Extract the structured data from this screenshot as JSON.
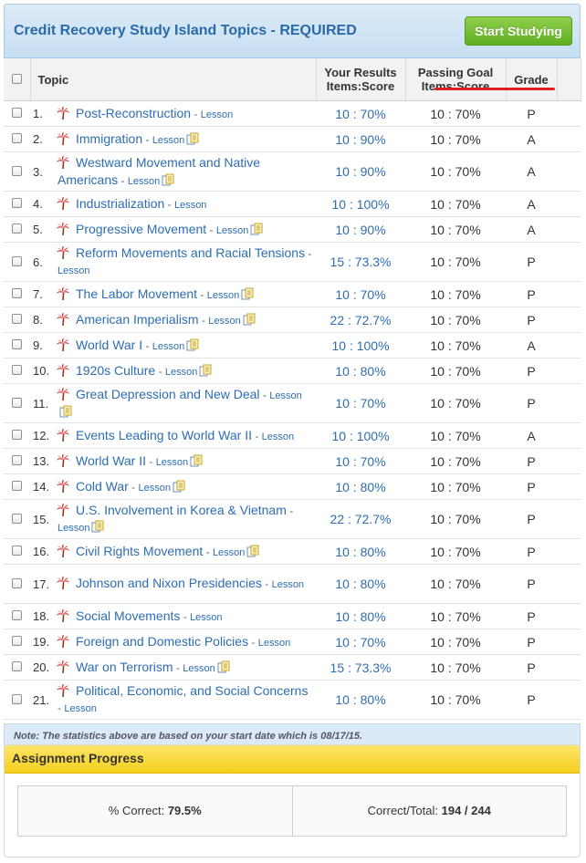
{
  "header": {
    "title": "Credit Recovery Study Island Topics - REQUIRED",
    "start_button": "Start Studying"
  },
  "columns": {
    "topic": "Topic",
    "results_line1": "Your Results",
    "results_line2": "Items:Score",
    "goal_line1": "Passing Goal",
    "goal_line2": "Items:Score",
    "grade": "Grade"
  },
  "rows": [
    {
      "num": "1.",
      "topic": "Post-Reconstruction",
      "lesson": "Lesson",
      "doc": false,
      "res": "10 :  70%",
      "goal": "10 :  70%",
      "grade": "P"
    },
    {
      "num": "2.",
      "topic": "Immigration",
      "lesson": "Lesson",
      "doc": true,
      "res": "10 :  90%",
      "goal": "10 :  70%",
      "grade": "A"
    },
    {
      "num": "3.",
      "topic": "Westward Movement and Native Americans",
      "lesson": "Lesson",
      "doc": true,
      "res": "10 :  90%",
      "goal": "10 :  70%",
      "grade": "A"
    },
    {
      "num": "4.",
      "topic": "Industrialization",
      "lesson": "Lesson",
      "doc": false,
      "res": "10 :  100%",
      "goal": "10 :  70%",
      "grade": "A"
    },
    {
      "num": "5.",
      "topic": "Progressive Movement",
      "lesson": "Lesson",
      "doc": true,
      "res": "10 :  90%",
      "goal": "10 :  70%",
      "grade": "A"
    },
    {
      "num": "6.",
      "topic": "Reform Movements and Racial Tensions",
      "lesson": "Lesson",
      "doc": false,
      "res": "15 :  73.3%",
      "goal": "10 :  70%",
      "grade": "P"
    },
    {
      "num": "7.",
      "topic": "The Labor Movement",
      "lesson": "Lesson",
      "doc": true,
      "res": "10 :  70%",
      "goal": "10 :  70%",
      "grade": "P"
    },
    {
      "num": "8.",
      "topic": "American Imperialism",
      "lesson": "Lesson",
      "doc": true,
      "res": "22 :  72.7%",
      "goal": "10 :  70%",
      "grade": "P"
    },
    {
      "num": "9.",
      "topic": "World War I",
      "lesson": "Lesson",
      "doc": true,
      "res": "10 :  100%",
      "goal": "10 :  70%",
      "grade": "A"
    },
    {
      "num": "10.",
      "topic": "1920s Culture",
      "lesson": "Lesson",
      "doc": true,
      "res": "10 :  80%",
      "goal": "10 :  70%",
      "grade": "P"
    },
    {
      "num": "11.",
      "topic": "Great Depression and New Deal",
      "lesson": "Lesson",
      "doc": true,
      "res": "10 :  70%",
      "goal": "10 :  70%",
      "grade": "P"
    },
    {
      "num": "12.",
      "topic": "Events Leading to World War II",
      "lesson": "Lesson",
      "doc": false,
      "res": "10 :  100%",
      "goal": "10 :  70%",
      "grade": "A"
    },
    {
      "num": "13.",
      "topic": "World War II",
      "lesson": "Lesson",
      "doc": true,
      "res": "10 :  70%",
      "goal": "10 :  70%",
      "grade": "P"
    },
    {
      "num": "14.",
      "topic": "Cold War",
      "lesson": "Lesson",
      "doc": true,
      "res": "10 :  80%",
      "goal": "10 :  70%",
      "grade": "P"
    },
    {
      "num": "15.",
      "topic": "U.S. Involvement in Korea & Vietnam",
      "lesson": "Lesson",
      "doc": true,
      "res": "22 :  72.7%",
      "goal": "10 :  70%",
      "grade": "P"
    },
    {
      "num": "16.",
      "topic": "Civil Rights Movement",
      "lesson": "Lesson",
      "doc": true,
      "res": "10 :  80%",
      "goal": "10 :  70%",
      "grade": "P"
    },
    {
      "num": "17.",
      "topic": "Johnson and Nixon Presidencies",
      "lesson": "Lesson",
      "doc": false,
      "res": "10 :  80%",
      "goal": "10 :  70%",
      "grade": "P"
    },
    {
      "num": "18.",
      "topic": "Social Movements",
      "lesson": "Lesson",
      "doc": false,
      "res": "10 :  80%",
      "goal": "10 :  70%",
      "grade": "P"
    },
    {
      "num": "19.",
      "topic": "Foreign and Domestic Policies",
      "lesson": "Lesson",
      "doc": false,
      "res": "10 :  70%",
      "goal": "10 :  70%",
      "grade": "P"
    },
    {
      "num": "20.",
      "topic": "War on Terrorism",
      "lesson": "Lesson",
      "doc": true,
      "res": "15 :  73.3%",
      "goal": "10 :  70%",
      "grade": "P"
    },
    {
      "num": "21.",
      "topic": "Political, Economic, and Social Concerns",
      "lesson": "Lesson",
      "doc": false,
      "res": "10 :  80%",
      "goal": "10 :  70%",
      "grade": "P"
    }
  ],
  "note": "Note: The statistics above are based on your start date which is 08/17/15.",
  "progress": {
    "title": "Assignment Progress",
    "correct_label": "% Correct:",
    "correct_value": "79.5%",
    "total_label": "Correct/Total:",
    "total_value": "194 / 244"
  },
  "icons": {
    "topic_icon": "palm-tree-icon",
    "lesson_doc_icon": "document-icon"
  },
  "colors": {
    "link": "#2e6db4",
    "start_button": "#6cbc2a",
    "header_bg": "#c7dff2",
    "progress_header": "#f5cf1c",
    "annotation": "#e02020"
  }
}
